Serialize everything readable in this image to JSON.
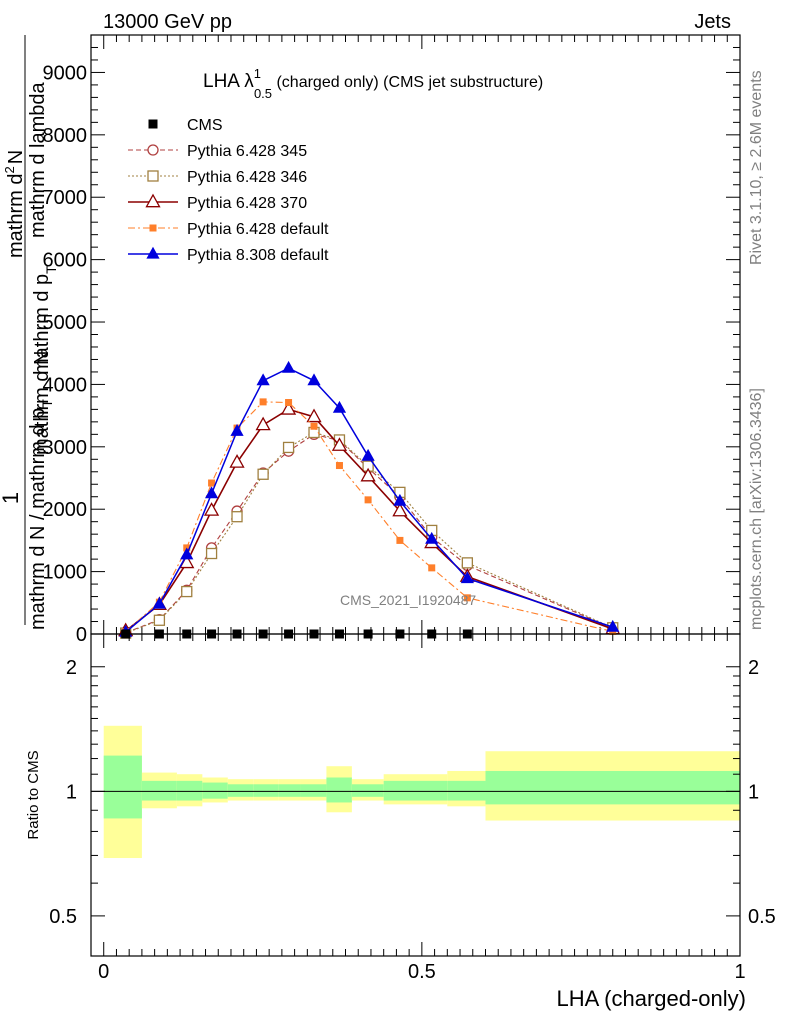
{
  "header": {
    "left": "13000 GeV pp",
    "right": "Jets"
  },
  "side_labels": {
    "rivet": "Rivet 3.1.10, ≥ 2.6M events",
    "mcplots": "mcplots.cern.ch [arXiv:1306.3436]"
  },
  "main_plot": {
    "title_main": "LHA λ",
    "title_sup": "1",
    "title_sub": "0.5",
    "title_rest": " (charged only) (CMS jet substructure)",
    "watermark": "CMS_2021_I1920487",
    "ylabel_numerator": "1",
    "ylabel_line1": "mathrm d N / mathrm d p",
    "ylabel_line1_sub": "T",
    "ylabel_line2": "mathrm d N",
    "ylabel_rhs_line1": "mathrm d",
    "ylabel_rhs_line1_sup": "2",
    "ylabel_rhs_line2": "N",
    "ylabel_rhs_line3": "mathrm d p",
    "ylabel_rhs_line3_sub": "T",
    "ylabel_rhs_line4": "mathrm d lambda",
    "yticks": [
      "0",
      "1000",
      "2000",
      "3000",
      "4000",
      "5000",
      "6000",
      "7000",
      "8000",
      "9000"
    ]
  },
  "ratio_plot": {
    "ylabel": "Ratio to CMS",
    "yticks": [
      "0.5",
      "1",
      "2"
    ],
    "xlabel": "LHA (charged-only)",
    "xticks": [
      "0",
      "0.5",
      "1"
    ]
  },
  "colors": {
    "cms": "#000000",
    "p345": "#b04040",
    "p346": "#a08040",
    "p370": "#8b0000",
    "p6def": "#ff7f2a",
    "p8def": "#0000dd",
    "band_outer": "#ffff99",
    "band_inner": "#99ff99"
  },
  "chart_data": {
    "type": "line",
    "x": [
      0.0345,
      0.0875,
      0.1305,
      0.1695,
      0.2095,
      0.2505,
      0.2905,
      0.3305,
      0.3705,
      0.4155,
      0.4655,
      0.5155,
      0.5715,
      0.8
    ],
    "xlim": [
      -0.02,
      1.0
    ],
    "ylim": [
      0,
      9600
    ],
    "ratio_ylim": [
      0.4,
      2.4
    ],
    "ratio_yscale": "log",
    "series": [
      {
        "name": "CMS",
        "marker": "filled-square",
        "line": "none",
        "values": [
          0,
          0,
          0,
          0,
          0,
          0,
          0,
          0,
          0,
          0,
          0,
          0,
          0,
          null
        ]
      },
      {
        "name": "Pythia 6.428 345",
        "marker": "open-circle",
        "line": "dashed",
        "values": [
          20,
          230,
          700,
          1380,
          1970,
          2580,
          2930,
          3200,
          3100,
          2660,
          2200,
          1550,
          1100,
          90
        ]
      },
      {
        "name": "Pythia 6.428 346",
        "marker": "open-square",
        "line": "dotted",
        "values": [
          15,
          220,
          680,
          1290,
          1880,
          2560,
          2990,
          3230,
          3110,
          2690,
          2270,
          1660,
          1140,
          100
        ]
      },
      {
        "name": "Pythia 6.428 370",
        "marker": "open-triangle",
        "line": "solid",
        "values": [
          50,
          470,
          1140,
          1980,
          2750,
          3350,
          3600,
          3480,
          3020,
          2530,
          1970,
          1460,
          920,
          80
        ]
      },
      {
        "name": "Pythia 6.428 default",
        "marker": "filled-small-square",
        "line": "dashdot",
        "values": [
          40,
          510,
          1380,
          2420,
          3300,
          3720,
          3710,
          3330,
          2700,
          2150,
          1500,
          1060,
          580,
          40
        ]
      },
      {
        "name": "Pythia 8.308 default",
        "marker": "filled-triangle",
        "line": "solid",
        "values": [
          30,
          480,
          1270,
          2250,
          3250,
          4060,
          4260,
          4060,
          3620,
          2850,
          2130,
          1520,
          890,
          110
        ]
      }
    ],
    "ratio_bands": {
      "edges": [
        0.0,
        0.06,
        0.115,
        0.155,
        0.195,
        0.235,
        0.275,
        0.31,
        0.35,
        0.39,
        0.44,
        0.49,
        0.54,
        0.6,
        1.0
      ],
      "outer_lo": [
        0.69,
        0.91,
        0.92,
        0.94,
        0.95,
        0.95,
        0.95,
        0.95,
        0.89,
        0.95,
        0.93,
        0.93,
        0.92,
        0.85
      ],
      "outer_hi": [
        1.44,
        1.11,
        1.1,
        1.08,
        1.07,
        1.07,
        1.07,
        1.07,
        1.15,
        1.07,
        1.1,
        1.1,
        1.12,
        1.25
      ],
      "inner_lo": [
        0.86,
        0.95,
        0.95,
        0.96,
        0.97,
        0.97,
        0.97,
        0.97,
        0.94,
        0.97,
        0.95,
        0.95,
        0.95,
        0.93
      ],
      "inner_hi": [
        1.22,
        1.06,
        1.06,
        1.05,
        1.04,
        1.04,
        1.04,
        1.04,
        1.08,
        1.04,
        1.06,
        1.06,
        1.06,
        1.12
      ]
    }
  }
}
